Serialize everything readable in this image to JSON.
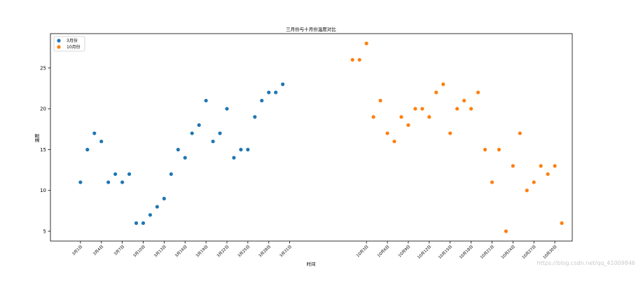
{
  "chart_data": {
    "type": "scatter",
    "title": "三月份与十月份温度对比",
    "xlabel": "时间",
    "ylabel": "温度",
    "ylim": [
      3.8,
      29.2
    ],
    "yticks": [
      5,
      10,
      15,
      20,
      25
    ],
    "xlim": [
      -3.3,
      71.5
    ],
    "grid": false,
    "legend_position": "top-left",
    "series": [
      {
        "name": "3月份",
        "color": "#1f77b4",
        "x": [
          1,
          2,
          3,
          4,
          5,
          6,
          7,
          8,
          9,
          10,
          11,
          12,
          13,
          14,
          15,
          16,
          17,
          18,
          19,
          20,
          21,
          22,
          23,
          24,
          25,
          26,
          27,
          28,
          29,
          30
        ],
        "y": [
          11,
          15,
          17,
          16,
          11,
          12,
          11,
          12,
          6,
          6,
          7,
          8,
          9,
          12,
          15,
          14,
          17,
          18,
          21,
          16,
          17,
          20,
          14,
          15,
          15,
          19,
          21,
          22,
          22,
          23
        ]
      },
      {
        "name": "10月份",
        "color": "#ff7f0e",
        "x": [
          40,
          41,
          42,
          43,
          44,
          45,
          46,
          47,
          48,
          49,
          50,
          51,
          52,
          53,
          54,
          55,
          56,
          57,
          58,
          59,
          60,
          61,
          62,
          63,
          64,
          65,
          66,
          67,
          68,
          69,
          70
        ],
        "y": [
          26,
          26,
          28,
          19,
          21,
          17,
          16,
          19,
          18,
          20,
          20,
          19,
          22,
          23,
          17,
          20,
          21,
          20,
          22,
          15,
          11,
          15,
          5,
          13,
          17,
          10,
          11,
          13,
          12,
          13,
          6
        ]
      }
    ],
    "x_ticks": [
      {
        "x": 1,
        "label": "3月1日"
      },
      {
        "x": 4,
        "label": "3月4日"
      },
      {
        "x": 7,
        "label": "3月7日"
      },
      {
        "x": 10,
        "label": "3月10日"
      },
      {
        "x": 13,
        "label": "3月13日"
      },
      {
        "x": 16,
        "label": "3月16日"
      },
      {
        "x": 19,
        "label": "3月19日"
      },
      {
        "x": 22,
        "label": "3月22日"
      },
      {
        "x": 25,
        "label": "3月25日"
      },
      {
        "x": 28,
        "label": "3月28日"
      },
      {
        "x": 31,
        "label": "3月31日"
      },
      {
        "x": 42,
        "label": "10月3日"
      },
      {
        "x": 45,
        "label": "10月6日"
      },
      {
        "x": 48,
        "label": "10月9日"
      },
      {
        "x": 51,
        "label": "10月12日"
      },
      {
        "x": 54,
        "label": "10月15日"
      },
      {
        "x": 57,
        "label": "10月18日"
      },
      {
        "x": 60,
        "label": "10月21日"
      },
      {
        "x": 63,
        "label": "10月24日"
      },
      {
        "x": 66,
        "label": "10月27日"
      },
      {
        "x": 69,
        "label": "10月30日"
      }
    ]
  },
  "watermark": "https://blog.csdn.net/qq_41009846"
}
